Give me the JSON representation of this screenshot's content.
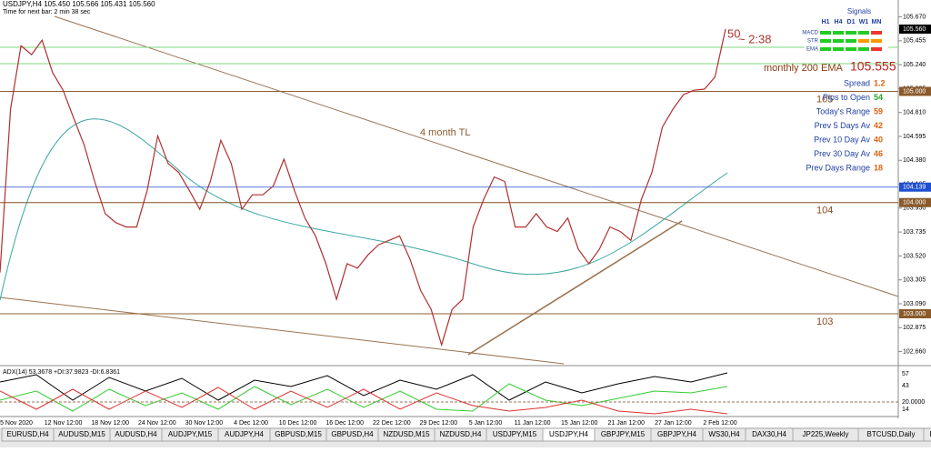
{
  "window": {
    "header": "USDJPY,H4  105.450 105.566 105.431 105.560",
    "timer": "Time for next bar: 2 min 38 sec"
  },
  "chart_data": {
    "type": "line",
    "color": "#b03030",
    "values": [
      103.37,
      104.84,
      105.41,
      105.33,
      105.46,
      105.17,
      105.01,
      104.76,
      104.52,
      104.19,
      103.9,
      103.82,
      103.78,
      103.78,
      104.11,
      104.6,
      104.35,
      104.27,
      104.11,
      103.94,
      104.19,
      104.56,
      104.35,
      103.94,
      104.07,
      104.07,
      104.15,
      104.39,
      104.11,
      103.86,
      103.7,
      103.45,
      103.13,
      103.45,
      103.41,
      103.53,
      103.62,
      103.66,
      103.7,
      103.49,
      103.21,
      103.04,
      102.72,
      103.04,
      103.13,
      103.78,
      104.03,
      104.23,
      104.19,
      103.78,
      103.78,
      103.9,
      103.78,
      103.74,
      103.86,
      103.58,
      103.45,
      103.58,
      103.78,
      103.74,
      103.66,
      104.03,
      104.27,
      104.68,
      104.84,
      104.97,
      105.01,
      105.02,
      105.13,
      105.56
    ],
    "ylim": [
      102.55,
      105.74
    ],
    "yticks": [
      {
        "value": 105.67,
        "label": "105.670"
      },
      {
        "value": 105.455,
        "label": "105.455"
      },
      {
        "value": 105.24,
        "label": "105.240"
      },
      {
        "value": 105.025,
        "label": "105.025"
      },
      {
        "value": 104.81,
        "label": "104.810"
      },
      {
        "value": 104.595,
        "label": "104.595"
      },
      {
        "value": 104.38,
        "label": "104.380"
      },
      {
        "value": 104.165,
        "label": "104.165"
      },
      {
        "value": 103.95,
        "label": "103.950"
      },
      {
        "value": 103.735,
        "label": "103.735"
      },
      {
        "value": 103.52,
        "label": "103.520"
      },
      {
        "value": 103.305,
        "label": "103.305"
      },
      {
        "value": 103.09,
        "label": "103.090"
      },
      {
        "value": 102.875,
        "label": "102.875"
      },
      {
        "value": 102.66,
        "label": "102.660"
      }
    ],
    "price_labels": [
      {
        "value": 105.56,
        "label": "105.560",
        "color": "#000000"
      },
      {
        "value": 105,
        "label": "105.000",
        "color": "#8a5a2b"
      },
      {
        "value": 104.139,
        "label": "104.139",
        "color": "#1f4fd0"
      },
      {
        "value": 104,
        "label": "104.000",
        "color": "#8a5a2b"
      },
      {
        "value": 103,
        "label": "103.000",
        "color": "#8a5a2b"
      }
    ],
    "levels": [
      {
        "value": 105,
        "label": "105"
      },
      {
        "value": 104,
        "label": "104"
      },
      {
        "value": 103,
        "label": "103"
      }
    ],
    "trend_label": "4 month TL",
    "ema_label": "monthly 200 EMA",
    "ema_value": "105.555",
    "countdown_period": "50",
    "countdown": "~ 2:38"
  },
  "signals": {
    "title": "Signals",
    "columns": [
      "H1",
      "H4",
      "D1",
      "W1",
      "MN"
    ],
    "rows": [
      "MACD",
      "STR",
      "EMA"
    ]
  },
  "stats": [
    {
      "label": "Spread",
      "value": "1.2"
    },
    {
      "label": "Pips to Open",
      "value": "54"
    },
    {
      "label": "Today's Range",
      "value": "59"
    },
    {
      "label": "Prev 5 Days Av",
      "value": "42"
    },
    {
      "label": "Prev 10 Day Av",
      "value": "40"
    },
    {
      "label": "Prev 30 Day Av",
      "value": "46"
    },
    {
      "label": "Prev Days Range",
      "value": "18"
    }
  ],
  "indicator": {
    "title": "ADX(14) 53.3678 +DI:37.9823 -DI:6.8361",
    "labels": [
      "57",
      "43",
      "20.0000",
      "14"
    ]
  },
  "time_axis": [
    "5 Nov 2020",
    "12 Nov 12:00",
    "18 Nov 12:00",
    "24 Nov 12:00",
    "30 Nov 12:00",
    "4 Dec 12:00",
    "10 Dec 12:00",
    "16 Dec 12:00",
    "22 Dec 12:00",
    "29 Dec 12:00",
    "5 Jan 12:00",
    "11 Jan 12:00",
    "15 Jan 12:00",
    "21 Jan 12:00",
    "27 Jan 12:00",
    "2 Feb 12:00"
  ],
  "tabs": [
    "EURUSD,H4",
    "AUDUSD,M15",
    "AUDUSD,H4",
    "AUDJPY,M15",
    "AUDJPY,H4",
    "GBPUSD,M15",
    "GBPUSD,H4",
    "NZDUSD,M15",
    "NZDUSD,H4",
    "USDJPY,M15",
    "USDJPY,H4",
    "GBPJPY,M15",
    "GBPJPY,H4",
    "WS30,H4",
    "DAX30,H4",
    "JP225,Weekly",
    "BTCUSD,Daily",
    "EURI"
  ]
}
